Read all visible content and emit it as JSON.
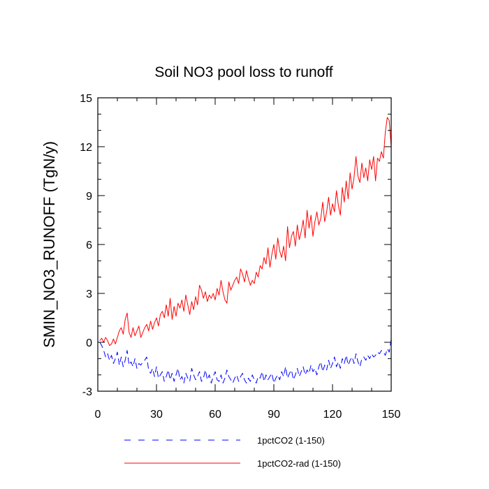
{
  "chart_data": {
    "type": "line",
    "title": "Soil NO3 pool loss to runoff",
    "xlabel": "",
    "ylabel": "SMIN_NO3_RUNOFF  (TgN/y)",
    "xlim": [
      0,
      150
    ],
    "ylim": [
      -3,
      15
    ],
    "x_ticks": [
      0,
      30,
      60,
      90,
      120,
      150
    ],
    "y_ticks": [
      -3,
      0,
      3,
      6,
      9,
      12,
      15
    ],
    "x_tick_labels": [
      "0",
      "30",
      "60",
      "90",
      "120",
      "150"
    ],
    "y_tick_labels": [
      "-3",
      "0",
      "3",
      "6",
      "9",
      "12",
      "15"
    ],
    "grid": false,
    "legend_position": "bottom",
    "series": [
      {
        "name": "1pctCO2 (1-150)",
        "color": "#0000ff",
        "style": "dashed",
        "x": [
          1,
          2,
          3,
          4,
          5,
          6,
          7,
          8,
          9,
          10,
          11,
          12,
          13,
          14,
          15,
          16,
          17,
          18,
          19,
          20,
          21,
          22,
          23,
          24,
          25,
          26,
          27,
          28,
          29,
          30,
          31,
          32,
          33,
          34,
          35,
          36,
          37,
          38,
          39,
          40,
          41,
          42,
          43,
          44,
          45,
          46,
          47,
          48,
          49,
          50,
          51,
          52,
          53,
          54,
          55,
          56,
          57,
          58,
          59,
          60,
          61,
          62,
          63,
          64,
          65,
          66,
          67,
          68,
          69,
          70,
          71,
          72,
          73,
          74,
          75,
          76,
          77,
          78,
          79,
          80,
          81,
          82,
          83,
          84,
          85,
          86,
          87,
          88,
          89,
          90,
          91,
          92,
          93,
          94,
          95,
          96,
          97,
          98,
          99,
          100,
          101,
          102,
          103,
          104,
          105,
          106,
          107,
          108,
          109,
          110,
          111,
          112,
          113,
          114,
          115,
          116,
          117,
          118,
          119,
          120,
          121,
          122,
          123,
          124,
          125,
          126,
          127,
          128,
          129,
          130,
          131,
          132,
          133,
          134,
          135,
          136,
          137,
          138,
          139,
          140,
          141,
          142,
          143,
          144,
          145,
          146,
          147,
          148,
          149,
          150
        ],
        "values": [
          0.0,
          -0.2,
          -0.5,
          -0.9,
          -0.7,
          -1.1,
          -0.8,
          -1.3,
          -1.0,
          -0.6,
          -1.4,
          -0.9,
          -1.5,
          -1.1,
          -0.5,
          -1.4,
          -1.2,
          -1.5,
          -1.0,
          -1.6,
          -1.3,
          -1.4,
          -1.2,
          -1.1,
          -0.9,
          -1.7,
          -1.9,
          -1.6,
          -2.1,
          -1.5,
          -2.2,
          -2.0,
          -1.8,
          -2.4,
          -2.1,
          -1.7,
          -2.3,
          -1.9,
          -2.4,
          -2.0,
          -1.6,
          -2.3,
          -2.1,
          -2.5,
          -1.9,
          -2.2,
          -2.4,
          -1.6,
          -2.0,
          -2.3,
          -2.1,
          -1.8,
          -2.4,
          -2.2,
          -1.7,
          -2.3,
          -2.0,
          -2.5,
          -2.1,
          -1.8,
          -2.3,
          -2.4,
          -2.0,
          -2.5,
          -2.2,
          -1.7,
          -2.1,
          -2.3,
          -2.5,
          -2.2,
          -2.0,
          -2.4,
          -2.1,
          -1.9,
          -2.3,
          -2.5,
          -2.2,
          -2.4,
          -2.0,
          -2.3,
          -2.5,
          -2.1,
          -2.2,
          -1.8,
          -2.4,
          -2.0,
          -2.3,
          -2.1,
          -1.9,
          -2.5,
          -2.2,
          -2.0,
          -2.3,
          -1.8,
          -2.1,
          -1.5,
          -2.2,
          -1.9,
          -1.7,
          -2.3,
          -2.0,
          -1.6,
          -2.1,
          -1.8,
          -1.5,
          -2.0,
          -1.7,
          -1.9,
          -1.4,
          -1.8,
          -1.6,
          -2.0,
          -1.5,
          -1.2,
          -1.8,
          -1.4,
          -1.7,
          -1.1,
          -1.6,
          -1.3,
          -0.9,
          -1.5,
          -1.2,
          -1.6,
          -1.0,
          -1.3,
          -0.8,
          -1.4,
          -1.1,
          -0.9,
          -1.3,
          -0.7,
          -1.2,
          -1.5,
          -1.0,
          -0.9,
          -1.1,
          -0.8,
          -1.0,
          -0.7,
          -0.9,
          -0.8,
          -0.6,
          -0.7,
          -0.5,
          -0.6,
          -0.8,
          -0.4,
          -0.6,
          0.2
        ]
      },
      {
        "name": "1pctCO2-rad (1-150)",
        "color": "#ff0000",
        "style": "solid",
        "x": [
          1,
          2,
          3,
          4,
          5,
          6,
          7,
          8,
          9,
          10,
          11,
          12,
          13,
          14,
          15,
          16,
          17,
          18,
          19,
          20,
          21,
          22,
          23,
          24,
          25,
          26,
          27,
          28,
          29,
          30,
          31,
          32,
          33,
          34,
          35,
          36,
          37,
          38,
          39,
          40,
          41,
          42,
          43,
          44,
          45,
          46,
          47,
          48,
          49,
          50,
          51,
          52,
          53,
          54,
          55,
          56,
          57,
          58,
          59,
          60,
          61,
          62,
          63,
          64,
          65,
          66,
          67,
          68,
          69,
          70,
          71,
          72,
          73,
          74,
          75,
          76,
          77,
          78,
          79,
          80,
          81,
          82,
          83,
          84,
          85,
          86,
          87,
          88,
          89,
          90,
          91,
          92,
          93,
          94,
          95,
          96,
          97,
          98,
          99,
          100,
          101,
          102,
          103,
          104,
          105,
          106,
          107,
          108,
          109,
          110,
          111,
          112,
          113,
          114,
          115,
          116,
          117,
          118,
          119,
          120,
          121,
          122,
          123,
          124,
          125,
          126,
          127,
          128,
          129,
          130,
          131,
          132,
          133,
          134,
          135,
          136,
          137,
          138,
          139,
          140,
          141,
          142,
          143,
          144,
          145,
          146,
          147,
          148,
          149,
          150
        ],
        "values": [
          0.1,
          0.25,
          0.0,
          0.3,
          0.1,
          -0.2,
          -0.1,
          0.2,
          -0.1,
          0.3,
          0.7,
          0.9,
          0.5,
          1.4,
          1.8,
          0.6,
          0.3,
          0.9,
          0.4,
          0.7,
          1.0,
          0.3,
          0.6,
          0.9,
          1.1,
          0.7,
          1.3,
          0.8,
          1.2,
          1.5,
          1.0,
          1.7,
          1.9,
          1.5,
          2.3,
          1.6,
          2.7,
          1.4,
          2.2,
          1.6,
          2.4,
          2.1,
          2.6,
          1.9,
          2.9,
          2.3,
          1.7,
          2.5,
          2.0,
          2.8,
          2.3,
          3.5,
          3.2,
          2.7,
          3.1,
          2.5,
          2.9,
          2.7,
          3.0,
          2.6,
          3.3,
          2.9,
          3.8,
          3.1,
          2.6,
          2.4,
          3.7,
          3.2,
          3.5,
          3.8,
          4.0,
          3.6,
          4.5,
          4.2,
          3.7,
          4.4,
          3.9,
          3.5,
          3.8,
          3.6,
          4.3,
          4.0,
          4.7,
          4.5,
          5.2,
          4.8,
          5.8,
          4.6,
          5.4,
          6.0,
          5.1,
          6.4,
          5.6,
          5.2,
          5.9,
          5.0,
          7.1,
          5.8,
          6.5,
          6.8,
          5.9,
          7.2,
          6.3,
          6.8,
          7.5,
          6.4,
          8.1,
          7.0,
          7.8,
          6.5,
          7.4,
          8.0,
          7.2,
          7.6,
          8.6,
          7.4,
          8.0,
          8.9,
          7.8,
          8.5,
          8.0,
          9.3,
          8.4,
          7.8,
          9.5,
          8.6,
          9.9,
          8.8,
          10.4,
          9.4,
          10.1,
          11.4,
          10.2,
          9.8,
          11.0,
          10.1,
          10.7,
          9.9,
          11.2,
          10.6,
          11.4,
          9.9,
          11.3,
          11.1,
          11.7,
          11.3,
          12.9,
          13.8,
          13.6,
          12.0
        ]
      }
    ]
  }
}
